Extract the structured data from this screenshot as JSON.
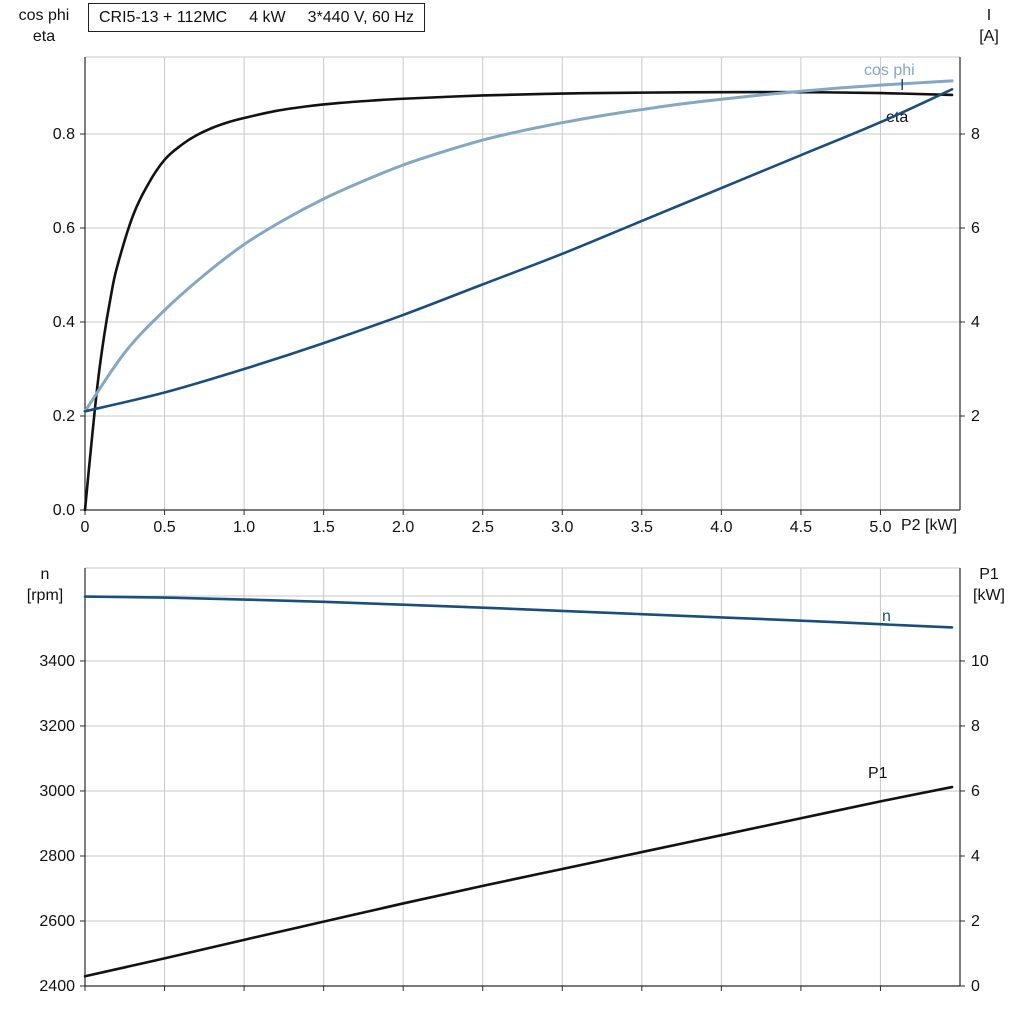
{
  "title_box": {
    "parts": [
      "CRI5-13 + 112MC",
      "4 kW",
      "3*440 V, 60 Hz"
    ]
  },
  "colors": {
    "black": "#121212",
    "light_blue": "#84a7c4",
    "dark_blue": "#1a4f7d",
    "grid": "#c9c9c9",
    "axis": "#2b2b2b"
  },
  "chart_data": [
    {
      "type": "line",
      "title": "CRI5-13 + 112MC 4 kW 3*440 V, 60 Hz",
      "x_axis": {
        "label": "P2 [kW]",
        "min": 0,
        "max": 5.5,
        "tick_values": [
          0,
          0.5,
          1,
          1.5,
          2,
          2.5,
          3,
          3.5,
          4,
          4.5,
          5
        ],
        "tick_labels": [
          "0",
          "0.5",
          "1.0",
          "1.5",
          "2.0",
          "2.5",
          "3.0",
          "3.5",
          "4.0",
          "4.5",
          "5.0"
        ],
        "grid_values": [
          0.5,
          1,
          1.5,
          2,
          2.5,
          3,
          3.5,
          4,
          4.5,
          5,
          5.5
        ]
      },
      "left_axis": {
        "label_lines": [
          "cos phi",
          "eta"
        ],
        "min": 0,
        "max": 0.9638,
        "tick_values": [
          0,
          0.2,
          0.4,
          0.6,
          0.8
        ],
        "tick_labels": [
          "0.0",
          "0.2",
          "0.4",
          "0.6",
          "0.8"
        ],
        "grid_values": [
          0.2,
          0.4,
          0.6,
          0.8
        ]
      },
      "right_axis": {
        "label_lines": [
          "I",
          "[A]"
        ],
        "min": 0,
        "max": 9.638,
        "tick_values": [
          2,
          4,
          6,
          8
        ],
        "tick_labels": [
          "2",
          "4",
          "6",
          "8"
        ],
        "grid_values": []
      },
      "series": [
        {
          "name": "eta",
          "axis": "left",
          "color": "black",
          "points": [
            [
              0,
              0
            ],
            [
              0.04,
              0.14
            ],
            [
              0.08,
              0.27
            ],
            [
              0.12,
              0.37
            ],
            [
              0.16,
              0.45
            ],
            [
              0.2,
              0.515
            ],
            [
              0.3,
              0.625
            ],
            [
              0.4,
              0.695
            ],
            [
              0.5,
              0.745
            ],
            [
              0.6,
              0.775
            ],
            [
              0.7,
              0.797
            ],
            [
              0.8,
              0.813
            ],
            [
              0.9,
              0.825
            ],
            [
              1.0,
              0.834
            ],
            [
              1.2,
              0.849
            ],
            [
              1.4,
              0.859
            ],
            [
              1.6,
              0.866
            ],
            [
              1.8,
              0.871
            ],
            [
              2.0,
              0.875
            ],
            [
              2.5,
              0.882
            ],
            [
              3.0,
              0.886
            ],
            [
              3.5,
              0.888
            ],
            [
              4.0,
              0.889
            ],
            [
              4.5,
              0.889
            ],
            [
              5.0,
              0.887
            ],
            [
              5.45,
              0.883
            ]
          ]
        },
        {
          "name": "cos phi",
          "axis": "left",
          "color": "light_blue",
          "points": [
            [
              0,
              0.21
            ],
            [
              0.25,
              0.335
            ],
            [
              0.5,
              0.425
            ],
            [
              0.75,
              0.5
            ],
            [
              1.0,
              0.565
            ],
            [
              1.25,
              0.617
            ],
            [
              1.5,
              0.662
            ],
            [
              1.75,
              0.7
            ],
            [
              2.0,
              0.734
            ],
            [
              2.25,
              0.762
            ],
            [
              2.5,
              0.787
            ],
            [
              2.75,
              0.807
            ],
            [
              3.0,
              0.824
            ],
            [
              3.25,
              0.839
            ],
            [
              3.5,
              0.852
            ],
            [
              3.75,
              0.864
            ],
            [
              4.0,
              0.874
            ],
            [
              4.25,
              0.883
            ],
            [
              4.5,
              0.891
            ],
            [
              4.75,
              0.898
            ],
            [
              5.0,
              0.904
            ],
            [
              5.25,
              0.909
            ],
            [
              5.45,
              0.913
            ]
          ]
        },
        {
          "name": "I",
          "axis": "right",
          "color": "dark_blue",
          "points": [
            [
              0,
              2.1
            ],
            [
              0.5,
              2.5
            ],
            [
              1.0,
              3.0
            ],
            [
              1.5,
              3.55
            ],
            [
              2.0,
              4.15
            ],
            [
              2.5,
              4.8
            ],
            [
              3.0,
              5.45
            ],
            [
              3.5,
              6.15
            ],
            [
              4.0,
              6.85
            ],
            [
              4.5,
              7.55
            ],
            [
              5.0,
              8.25
            ],
            [
              5.45,
              8.95
            ]
          ]
        }
      ]
    },
    {
      "type": "line",
      "x_axis": {
        "label": "",
        "min": 0,
        "max": 5.5,
        "tick_values": [
          0,
          0.5,
          1,
          1.5,
          2,
          2.5,
          3,
          3.5,
          4,
          4.5,
          5
        ],
        "tick_labels": [],
        "grid_values": [
          0.5,
          1,
          1.5,
          2,
          2.5,
          3,
          3.5,
          4,
          4.5,
          5,
          5.5
        ]
      },
      "left_axis": {
        "label_lines": [
          "n",
          "[rpm]"
        ],
        "min": 2400,
        "max": 3686,
        "tick_values": [
          2400,
          2600,
          2800,
          3000,
          3200,
          3400
        ],
        "tick_labels": [
          "2400",
          "2600",
          "2800",
          "3000",
          "3200",
          "3400"
        ],
        "grid_values": [
          2600,
          2800,
          3000,
          3200,
          3400,
          3600
        ]
      },
      "right_axis": {
        "label_lines": [
          "P1",
          "[kW]"
        ],
        "min": 0,
        "max": 12.86,
        "tick_values": [
          0,
          2,
          4,
          6,
          8,
          10
        ],
        "tick_labels": [
          "0",
          "2",
          "4",
          "6",
          "8",
          "10"
        ],
        "grid_values": []
      },
      "series": [
        {
          "name": "n",
          "axis": "left",
          "color": "dark_blue",
          "points": [
            [
              0,
              3598
            ],
            [
              0.5,
              3595
            ],
            [
              1.0,
              3589
            ],
            [
              1.5,
              3582
            ],
            [
              2.0,
              3573
            ],
            [
              2.5,
              3564
            ],
            [
              3.0,
              3554
            ],
            [
              3.5,
              3544
            ],
            [
              4.0,
              3534
            ],
            [
              4.5,
              3524
            ],
            [
              5.0,
              3513
            ],
            [
              5.45,
              3503
            ]
          ]
        },
        {
          "name": "P1",
          "axis": "right",
          "color": "black",
          "points": [
            [
              0,
              0.3
            ],
            [
              0.5,
              0.85
            ],
            [
              1.0,
              1.42
            ],
            [
              1.5,
              1.98
            ],
            [
              2.0,
              2.54
            ],
            [
              2.5,
              3.08
            ],
            [
              3.0,
              3.6
            ],
            [
              3.5,
              4.12
            ],
            [
              4.0,
              4.64
            ],
            [
              4.5,
              5.16
            ],
            [
              5.0,
              5.68
            ],
            [
              5.45,
              6.12
            ]
          ]
        }
      ]
    }
  ]
}
